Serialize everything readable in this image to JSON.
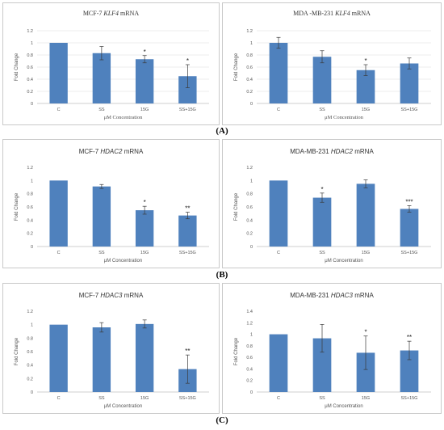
{
  "colors": {
    "bar": "#4f81bd",
    "grid": "#d9d9d9",
    "error": "#3a3a3a"
  },
  "row_labels": [
    "(A)",
    "(B)",
    "(C)"
  ],
  "chart_data": [
    {
      "type": "bar",
      "title_parts": [
        "MCF-7 ",
        "KLF4",
        " mRNA"
      ],
      "ylabel": "Fold Change",
      "xlabel": "μM Concentration",
      "ylim": [
        0,
        1.2
      ],
      "yticks": [
        "0",
        "0.2",
        "0.4",
        "0.6",
        "0.8",
        "1",
        "1.2"
      ],
      "grid": true,
      "categories": [
        "C",
        "SS",
        "15G",
        "SS+15G"
      ],
      "values": [
        1.0,
        0.83,
        0.73,
        0.45
      ],
      "errors": [
        0.0,
        0.11,
        0.06,
        0.19
      ],
      "significance": [
        "",
        "",
        "*",
        "*"
      ]
    },
    {
      "type": "bar",
      "title_parts": [
        "MDA -MB-231 ",
        "KLF4",
        " mRNA"
      ],
      "ylabel": "Fold Change",
      "xlabel": "μM Concentration",
      "ylim": [
        0,
        1.2
      ],
      "yticks": [
        "0",
        "0.2",
        "0.4",
        "0.6",
        "0.8",
        "1",
        "1.2"
      ],
      "grid": true,
      "categories": [
        "C",
        "SS",
        "15G",
        "SS+15G"
      ],
      "values": [
        1.0,
        0.77,
        0.55,
        0.66
      ],
      "errors": [
        0.09,
        0.1,
        0.09,
        0.09
      ],
      "significance": [
        "",
        "",
        "*",
        ""
      ]
    },
    {
      "type": "bar",
      "title_parts": [
        "MCF-7 ",
        "HDAC2",
        " mRNA"
      ],
      "ylabel": "Fold Change",
      "xlabel": "μM Concentration",
      "ylim": [
        0,
        1.2
      ],
      "yticks": [
        "0",
        "0.2",
        "0.4",
        "0.6",
        "0.8",
        "1",
        "1.2"
      ],
      "grid": false,
      "categories": [
        "C",
        "SS",
        "15G",
        "SS+15G"
      ],
      "values": [
        1.0,
        0.91,
        0.55,
        0.47
      ],
      "errors": [
        0.0,
        0.03,
        0.06,
        0.05
      ],
      "significance": [
        "",
        "",
        "*",
        "**"
      ]
    },
    {
      "type": "bar",
      "title_parts": [
        "MDA-MB-231 ",
        "HDAC2",
        " mRNA"
      ],
      "ylabel": "Fold Change",
      "xlabel": "μM Concentration",
      "ylim": [
        0,
        1.2
      ],
      "yticks": [
        "0",
        "0.2",
        "0.4",
        "0.6",
        "0.8",
        "1",
        "1.2"
      ],
      "grid": false,
      "categories": [
        "C",
        "SS",
        "15G",
        "SS+15G"
      ],
      "values": [
        1.0,
        0.74,
        0.95,
        0.57
      ],
      "errors": [
        0.0,
        0.07,
        0.06,
        0.05
      ],
      "significance": [
        "",
        "*",
        "",
        "***"
      ]
    },
    {
      "type": "bar",
      "title_parts": [
        "MCF-7 ",
        "HDAC3",
        " mRNA"
      ],
      "ylabel": "Fold Change",
      "xlabel": "μM Concentration",
      "ylim": [
        0,
        1.2
      ],
      "yticks": [
        "0",
        "0.2",
        "0.4",
        "0.6",
        "0.8",
        "1",
        "1.2"
      ],
      "grid": false,
      "categories": [
        "C",
        "SS",
        "15G",
        "SS+15G"
      ],
      "values": [
        1.0,
        0.96,
        1.01,
        0.34
      ],
      "errors": [
        0.0,
        0.07,
        0.06,
        0.21
      ],
      "significance": [
        "",
        "",
        "",
        "**"
      ]
    },
    {
      "type": "bar",
      "title_parts": [
        "MDA-MB-231 ",
        "HDAC3",
        " mRNA"
      ],
      "ylabel": "Fold Change",
      "xlabel": "μM Concentration",
      "ylim": [
        0,
        1.4
      ],
      "yticks": [
        "0",
        "0.2",
        "0.4",
        "0.6",
        "0.8",
        "1",
        "1.2",
        "1.4"
      ],
      "grid": false,
      "categories": [
        "C",
        "SS",
        "15G",
        "SS+15G"
      ],
      "values": [
        1.0,
        0.93,
        0.68,
        0.72
      ],
      "errors": [
        0.0,
        0.24,
        0.29,
        0.16
      ],
      "significance": [
        "",
        "",
        "*",
        "**"
      ]
    }
  ]
}
